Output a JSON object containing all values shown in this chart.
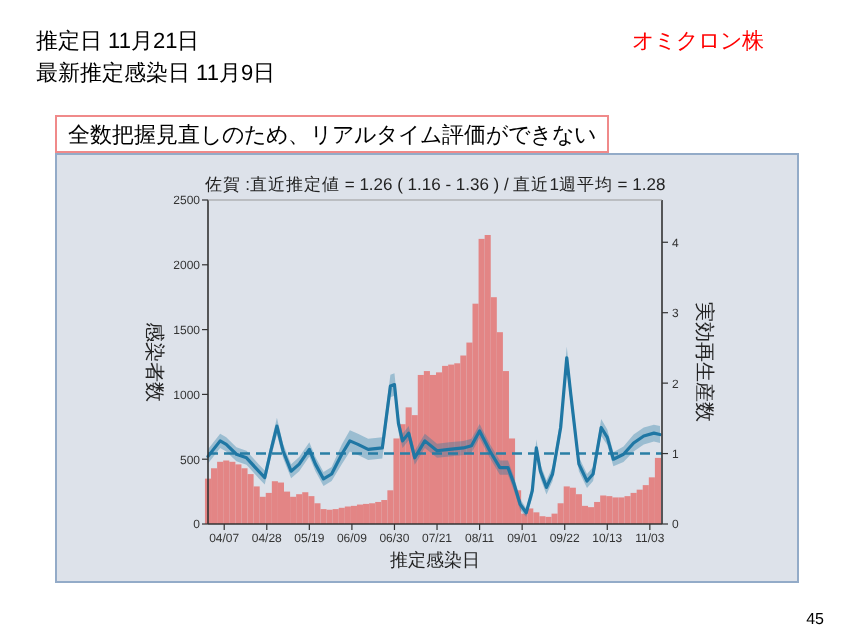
{
  "chart_data": {
    "type": "bar",
    "title": "佐賀 :直近推定値 = 1.26 ( 1.16 - 1.36 ) / 直近1週平均 = 1.28",
    "xlabel": "推定感染日",
    "ylabel": "感染者数",
    "y2label": "実効再生産数",
    "annotations": [
      "推定日  11月21日",
      "最新推定感染日  11月9日",
      "オミクロン株",
      "全数把握見直しのため、リアルタイム評価ができない",
      "45"
    ],
    "xlim": [
      "--03-30",
      "--11-09"
    ],
    "xticks": [
      {
        "value": "--04-07",
        "label": "04/07"
      },
      {
        "value": "--04-28",
        "label": "04/28"
      },
      {
        "value": "--05-19",
        "label": "05/19"
      },
      {
        "value": "--06-09",
        "label": "06/09"
      },
      {
        "value": "--06-30",
        "label": "06/30"
      },
      {
        "value": "--07-21",
        "label": "07/21"
      },
      {
        "value": "--08-11",
        "label": "08/11"
      },
      {
        "value": "--09-01",
        "label": "09/01"
      },
      {
        "value": "--09-22",
        "label": "09/22"
      },
      {
        "value": "--10-13",
        "label": "10/13"
      },
      {
        "value": "--11-03",
        "label": "11/03"
      }
    ],
    "ylim": [
      0,
      2500
    ],
    "yticks": [
      0,
      500,
      1000,
      1500,
      2000,
      2500
    ],
    "y2lim": [
      0,
      4.6
    ],
    "y2ticks": [
      0,
      1,
      2,
      3,
      4
    ],
    "ref_lines": [
      {
        "axis": "y2",
        "value": 1,
        "line_style": "dashed",
        "color": "#2a7fa5"
      }
    ],
    "series": [
      {
        "color": "#e38585",
        "x": [
          "--03-30",
          "--04-02",
          "--04-05",
          "--04-08",
          "--04-11",
          "--04-14",
          "--04-17",
          "--04-20",
          "--04-23",
          "--04-26",
          "--04-29",
          "--05-02",
          "--05-05",
          "--05-08",
          "--05-11",
          "--05-14",
          "--05-17",
          "--05-20",
          "--05-23",
          "--05-26",
          "--05-29",
          "--06-01",
          "--06-04",
          "--06-07",
          "--06-10",
          "--06-13",
          "--06-16",
          "--06-19",
          "--06-22",
          "--06-25",
          "--06-28",
          "--07-01",
          "--07-04",
          "--07-07",
          "--07-10",
          "--07-13",
          "--07-16",
          "--07-19",
          "--07-22",
          "--07-25",
          "--07-28",
          "--07-31",
          "--08-03",
          "--08-06",
          "--08-09",
          "--08-12",
          "--08-15",
          "--08-18",
          "--08-21",
          "--08-24",
          "--08-27",
          "--08-30",
          "--09-02",
          "--09-05",
          "--09-08",
          "--09-11",
          "--09-14",
          "--09-17",
          "--09-20",
          "--09-23",
          "--09-26",
          "--09-29",
          "--10-02",
          "--10-05",
          "--10-08",
          "--10-11",
          "--10-14",
          "--10-17",
          "--10-20",
          "--10-23",
          "--10-26",
          "--10-29",
          "--11-01",
          "--11-04",
          "--11-07"
        ],
        "values": [
          350,
          430,
          480,
          490,
          480,
          460,
          430,
          385,
          290,
          210,
          240,
          330,
          320,
          250,
          210,
          230,
          245,
          215,
          160,
          115,
          110,
          115,
          125,
          135,
          140,
          150,
          155,
          160,
          170,
          185,
          260,
          660,
          770,
          900,
          840,
          1150,
          1180,
          1150,
          1170,
          1220,
          1230,
          1240,
          1300,
          1400,
          1700,
          2200,
          2230,
          1750,
          1480,
          1180,
          660,
          260,
          80,
          120,
          90,
          60,
          55,
          80,
          160,
          290,
          280,
          230,
          140,
          130,
          170,
          220,
          215,
          205,
          205,
          215,
          240,
          265,
          300,
          360,
          510
        ]
      },
      {
        "type": "line",
        "axis": "y2",
        "color": "#1f77a4",
        "x": [
          "--03-30",
          "--04-05",
          "--04-08",
          "--04-13",
          "--04-18",
          "--04-24",
          "--04-27",
          "--04-30",
          "--05-03",
          "--05-06",
          "--05-10",
          "--05-14",
          "--05-19",
          "--05-22",
          "--05-26",
          "--05-30",
          "--06-04",
          "--06-08",
          "--06-12",
          "--06-17",
          "--06-24",
          "--06-28",
          "--06-30",
          "--07-02",
          "--07-04",
          "--07-07",
          "--07-10",
          "--07-15",
          "--07-21",
          "--07-27",
          "--08-03",
          "--08-07",
          "--08-11",
          "--08-16",
          "--08-21",
          "--08-25",
          "--08-28",
          "--08-31",
          "--09-03",
          "--09-06",
          "--09-08",
          "--09-10",
          "--09-13",
          "--09-16",
          "--09-20",
          "--09-23",
          "--09-25",
          "--09-29",
          "--10-03",
          "--10-06",
          "--10-10",
          "--10-13",
          "--10-16",
          "--10-21",
          "--10-26",
          "--10-31",
          "--11-05",
          "--11-08"
        ],
        "values": [
          0.96,
          1.18,
          1.13,
          0.99,
          0.94,
          0.75,
          0.66,
          1.04,
          1.39,
          1.04,
          0.75,
          0.85,
          1.06,
          0.85,
          0.64,
          0.71,
          0.99,
          1.18,
          1.13,
          1.06,
          1.08,
          1.96,
          1.98,
          1.42,
          1.18,
          1.29,
          0.94,
          1.18,
          1.04,
          1.06,
          1.08,
          1.11,
          1.32,
          1.04,
          0.8,
          0.8,
          0.57,
          0.28,
          0.16,
          0.47,
          1.08,
          0.75,
          0.52,
          0.71,
          1.37,
          2.36,
          1.84,
          0.85,
          0.61,
          0.71,
          1.37,
          1.23,
          0.92,
          0.99,
          1.15,
          1.25,
          1.29,
          1.27
        ],
        "lower": [
          0.86,
          1.08,
          1.03,
          0.89,
          0.84,
          0.65,
          0.56,
          0.94,
          1.27,
          0.94,
          0.65,
          0.75,
          0.96,
          0.75,
          0.54,
          0.61,
          0.85,
          1.03,
          0.98,
          0.91,
          0.93,
          1.8,
          1.82,
          1.3,
          1.08,
          1.19,
          0.84,
          1.08,
          0.94,
          0.96,
          0.98,
          1.01,
          1.22,
          0.94,
          0.7,
          0.7,
          0.47,
          0.2,
          0.1,
          0.37,
          0.96,
          0.65,
          0.42,
          0.61,
          1.24,
          2.2,
          1.7,
          0.75,
          0.51,
          0.61,
          1.25,
          1.12,
          0.82,
          0.88,
          1.03,
          1.13,
          1.17,
          1.15
        ],
        "upper": [
          1.06,
          1.28,
          1.23,
          1.09,
          1.04,
          0.85,
          0.76,
          1.14,
          1.51,
          1.14,
          0.85,
          0.95,
          1.16,
          0.95,
          0.74,
          0.81,
          1.13,
          1.33,
          1.28,
          1.21,
          1.23,
          2.12,
          2.14,
          1.54,
          1.28,
          1.39,
          1.04,
          1.28,
          1.14,
          1.16,
          1.18,
          1.21,
          1.42,
          1.14,
          0.9,
          0.9,
          0.67,
          0.36,
          0.22,
          0.57,
          1.2,
          0.85,
          0.62,
          0.81,
          1.5,
          2.52,
          1.98,
          0.95,
          0.71,
          0.81,
          1.49,
          1.34,
          1.02,
          1.1,
          1.27,
          1.37,
          1.41,
          1.39
        ]
      }
    ]
  }
}
